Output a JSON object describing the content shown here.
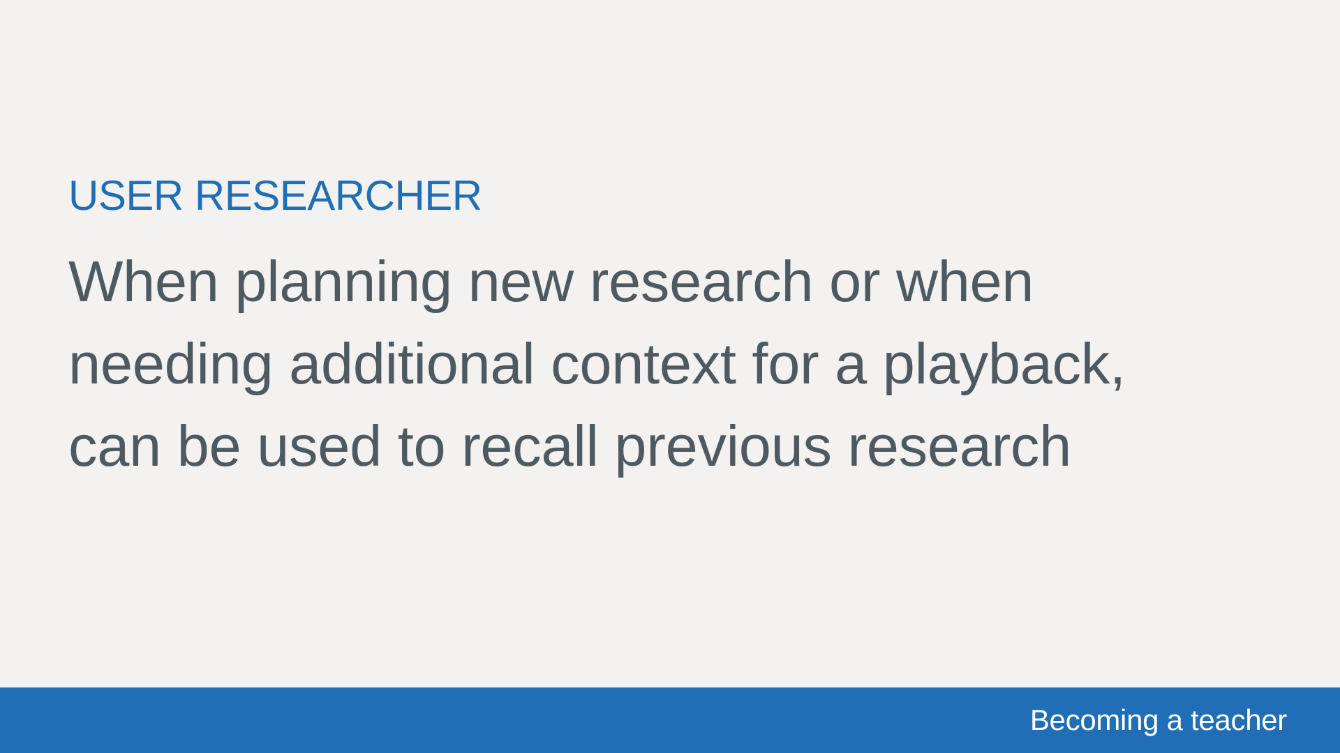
{
  "slide": {
    "role_label": "USER RESEARCHER",
    "quote_lines": [
      "When planning new research or when",
      "needing additional context for a playback,",
      "can be used to recall previous research"
    ]
  },
  "footer": {
    "title": "Becoming a teacher"
  },
  "colors": {
    "background": "#f4f2f1",
    "accent_blue": "#1f6eb6",
    "body_text": "#4f5960",
    "footer_text": "#ffffff"
  }
}
